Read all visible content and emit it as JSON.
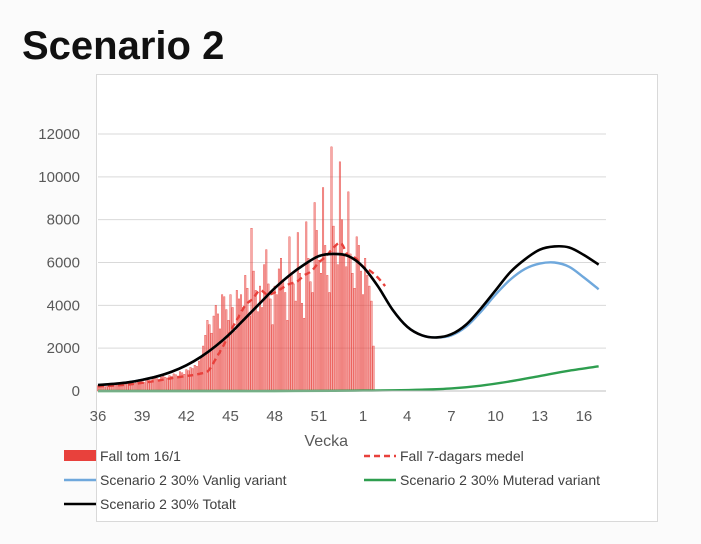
{
  "slide": {
    "title": "Scenario 2"
  },
  "chart_data": {
    "type": "line",
    "xlabel": "Vecka",
    "ylabel": "",
    "ylim": [
      0,
      12000
    ],
    "yticks": [
      0,
      2000,
      4000,
      6000,
      8000,
      10000,
      12000
    ],
    "x_tick_labels": [
      "36",
      "39",
      "42",
      "45",
      "48",
      "51",
      "1",
      "4",
      "7",
      "10",
      "13",
      "16"
    ],
    "grid": "horizontal",
    "legend_position": "bottom",
    "series": [
      {
        "name": "Fall  tom 16/1",
        "type": "bar",
        "color": "#e8413c",
        "x_start_week": 36,
        "points_per_week": 7,
        "values": [
          250,
          230,
          260,
          200,
          210,
          240,
          260,
          280,
          300,
          280,
          310,
          350,
          300,
          320,
          350,
          380,
          400,
          360,
          380,
          420,
          460,
          430,
          400,
          500,
          520,
          480,
          560,
          600,
          580,
          520,
          650,
          700,
          640,
          600,
          720,
          680,
          800,
          760,
          700,
          900,
          850,
          780,
          1000,
          950,
          1100,
          1050,
          1200,
          1150,
          1400,
          1600,
          2100,
          2600,
          3300,
          3100,
          2700,
          3500,
          4000,
          3600,
          2900,
          4500,
          4400,
          3800,
          3300,
          4500,
          3900,
          2800,
          4700,
          4300,
          4500,
          3900,
          5400,
          4800,
          3500,
          7600,
          5600,
          4700,
          3700,
          4900,
          3900,
          5900,
          6600,
          5000,
          4300,
          3100,
          4900,
          4500,
          5700,
          6200,
          5200,
          4600,
          3300,
          7200,
          5500,
          5000,
          4200,
          7400,
          5500,
          4100,
          3400,
          7900,
          6200,
          5100,
          4600,
          8800,
          7500,
          6100,
          5500,
          9500,
          6800,
          5400,
          4600,
          11400,
          7700,
          6800,
          5900,
          10700,
          8000,
          6300,
          5800,
          9300,
          6400,
          5500,
          4800,
          7200,
          6800,
          5600,
          4500,
          6200,
          5400,
          4900,
          4200,
          2100
        ]
      },
      {
        "name": "Fall 7-dagars medel",
        "type": "line",
        "dash": true,
        "color": "#e8413c",
        "x": [
          36,
          37,
          38,
          39,
          40,
          41,
          42,
          42.5,
          43,
          43.5,
          44,
          44.5,
          45,
          45.5,
          46,
          46.5,
          47,
          47.5,
          48,
          48.5,
          49,
          49.5,
          50,
          50.5,
          51,
          51.5,
          52,
          52.5,
          53,
          53.5,
          54,
          54.5,
          55,
          55.5
        ],
        "values": [
          220,
          250,
          300,
          380,
          480,
          600,
          700,
          750,
          820,
          950,
          1500,
          2100,
          2800,
          3400,
          4000,
          4300,
          4700,
          4500,
          4600,
          4800,
          5000,
          5100,
          5400,
          5600,
          6000,
          6300,
          6700,
          6900,
          6300,
          6200,
          5800,
          5600,
          5300,
          4900
        ]
      },
      {
        "name": "Scenario 2 30% Vanlig variant",
        "type": "line",
        "color": "#6fa8dc",
        "x": [
          36,
          37,
          38,
          39,
          40,
          41,
          42,
          43,
          44,
          45,
          46,
          47,
          48,
          49,
          50,
          51,
          52,
          53,
          54,
          55,
          56,
          57,
          58,
          59,
          60,
          61,
          62,
          63,
          64,
          65,
          66,
          67,
          68,
          69,
          70
        ],
        "values": [
          280,
          330,
          400,
          520,
          680,
          900,
          1200,
          1600,
          2100,
          2700,
          3400,
          4100,
          4800,
          5400,
          5900,
          6300,
          6400,
          6300,
          5800,
          4900,
          3800,
          3000,
          2600,
          2500,
          2600,
          3000,
          3700,
          4500,
          5200,
          5700,
          5950,
          6000,
          5800,
          5300,
          4750
        ]
      },
      {
        "name": "Scenario 2 30% Muterad variant",
        "type": "line",
        "color": "#2e9e4f",
        "x": [
          36,
          40,
          44,
          48,
          52,
          54,
          56,
          58,
          60,
          62,
          64,
          66,
          68,
          70
        ],
        "values": [
          0,
          0,
          0,
          0,
          10,
          20,
          30,
          60,
          120,
          250,
          450,
          700,
          950,
          1150
        ]
      },
      {
        "name": "Scenario 2 30% Totalt",
        "type": "line",
        "color": "#000000",
        "x": [
          36,
          37,
          38,
          39,
          40,
          41,
          42,
          43,
          44,
          45,
          46,
          47,
          48,
          49,
          50,
          51,
          52,
          53,
          54,
          55,
          56,
          57,
          58,
          59,
          60,
          61,
          62,
          63,
          64,
          65,
          66,
          67,
          68,
          69,
          70
        ],
        "values": [
          280,
          330,
          400,
          520,
          680,
          900,
          1200,
          1600,
          2100,
          2700,
          3400,
          4100,
          4800,
          5400,
          5900,
          6300,
          6400,
          6300,
          5800,
          4900,
          3800,
          3000,
          2600,
          2500,
          2650,
          3100,
          3850,
          4700,
          5550,
          6150,
          6600,
          6750,
          6700,
          6350,
          5900
        ]
      }
    ]
  }
}
